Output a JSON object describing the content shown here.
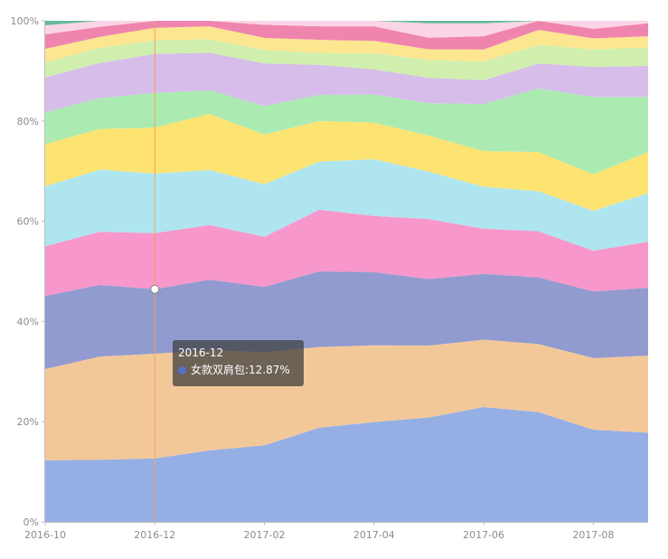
{
  "chart_data": {
    "type": "area",
    "stacked": true,
    "normalized_percent": true,
    "x": [
      "2016-10",
      "2016-11",
      "2016-12",
      "2017-01",
      "2017-02",
      "2017-03",
      "2017-04",
      "2017-05",
      "2017-06",
      "2017-07",
      "2017-08",
      "2017-09"
    ],
    "x_tick_labels": [
      "2016-10",
      "2016-12",
      "2017-02",
      "2017-04",
      "2017-06",
      "2017-08"
    ],
    "ylim": [
      0,
      100
    ],
    "y_tick_labels": [
      "0%",
      "20%",
      "40%",
      "60%",
      "80%",
      "100%"
    ],
    "grid": false,
    "legend": "none",
    "series": [
      {
        "color": "#8fabe4",
        "values": [
          12.3,
          12.4,
          12.7,
          14.3,
          15.3,
          18.8,
          19.9,
          20.9,
          23.2,
          21.9,
          18.4,
          17.8
        ]
      },
      {
        "color": "#f2c594",
        "values": [
          18.2,
          20.6,
          20.9,
          20.0,
          18.6,
          16.1,
          15.3,
          14.4,
          13.6,
          13.6,
          14.3,
          15.4
        ]
      },
      {
        "name": "女款双肩包",
        "color": "#8b96cc",
        "values": [
          14.6,
          14.3,
          12.87,
          14.1,
          13.0,
          15.1,
          14.6,
          13.3,
          13.3,
          13.3,
          13.3,
          13.5
        ]
      },
      {
        "color": "#f791c8",
        "values": [
          9.9,
          10.6,
          11.2,
          10.9,
          10.0,
          12.3,
          11.2,
          12.0,
          9.1,
          9.2,
          8.1,
          9.2
        ]
      },
      {
        "color": "#abe4ee",
        "values": [
          12.0,
          12.4,
          11.9,
          11.0,
          10.5,
          9.6,
          11.3,
          9.5,
          8.5,
          8.0,
          8.0,
          9.7
        ]
      },
      {
        "color": "#fde26a",
        "values": [
          8.4,
          8.1,
          9.2,
          11.2,
          9.9,
          8.1,
          7.3,
          7.2,
          7.2,
          7.8,
          7.3,
          8.2
        ]
      },
      {
        "color": "#a7eaad",
        "values": [
          6.3,
          6.2,
          6.9,
          4.7,
          5.7,
          5.2,
          5.6,
          6.5,
          9.5,
          12.7,
          15.4,
          11.0
        ]
      },
      {
        "color": "#d4b9e9",
        "values": [
          7.0,
          7.0,
          7.8,
          7.5,
          8.5,
          6.0,
          5.0,
          5.1,
          4.8,
          5.0,
          6.0,
          6.2
        ]
      },
      {
        "color": "#cdeeaa",
        "values": [
          3.0,
          3.0,
          2.7,
          2.7,
          2.7,
          2.4,
          3.2,
          3.6,
          3.8,
          3.7,
          3.5,
          3.7
        ]
      },
      {
        "color": "#fde58a",
        "values": [
          2.7,
          2.2,
          2.5,
          2.6,
          2.4,
          2.6,
          2.5,
          2.1,
          2.4,
          3.0,
          2.2,
          2.2
        ]
      },
      {
        "color": "#ee7eaa",
        "values": [
          2.9,
          2.0,
          1.4,
          1.1,
          2.6,
          2.7,
          2.9,
          2.3,
          2.7,
          1.8,
          1.9,
          2.6
        ]
      },
      {
        "color": "#fbd3e6",
        "values": [
          1.8,
          1.2,
          0.0,
          0.0,
          0.8,
          1.1,
          1.1,
          2.9,
          2.6,
          0.0,
          1.6,
          0.5
        ]
      },
      {
        "color": "#5fb59a",
        "values": [
          0.9,
          0.0,
          0.0,
          0.0,
          0.0,
          0.0,
          0.0,
          0.5,
          0.5,
          0.0,
          0.0,
          0.0
        ]
      }
    ]
  },
  "hover": {
    "x_index": 2,
    "series_index": 2,
    "line_color": "#f5a05a"
  },
  "tooltip": {
    "title": "2016-12",
    "label": "女款双肩包:12.87%",
    "dot_color": "#5b6ec7"
  }
}
